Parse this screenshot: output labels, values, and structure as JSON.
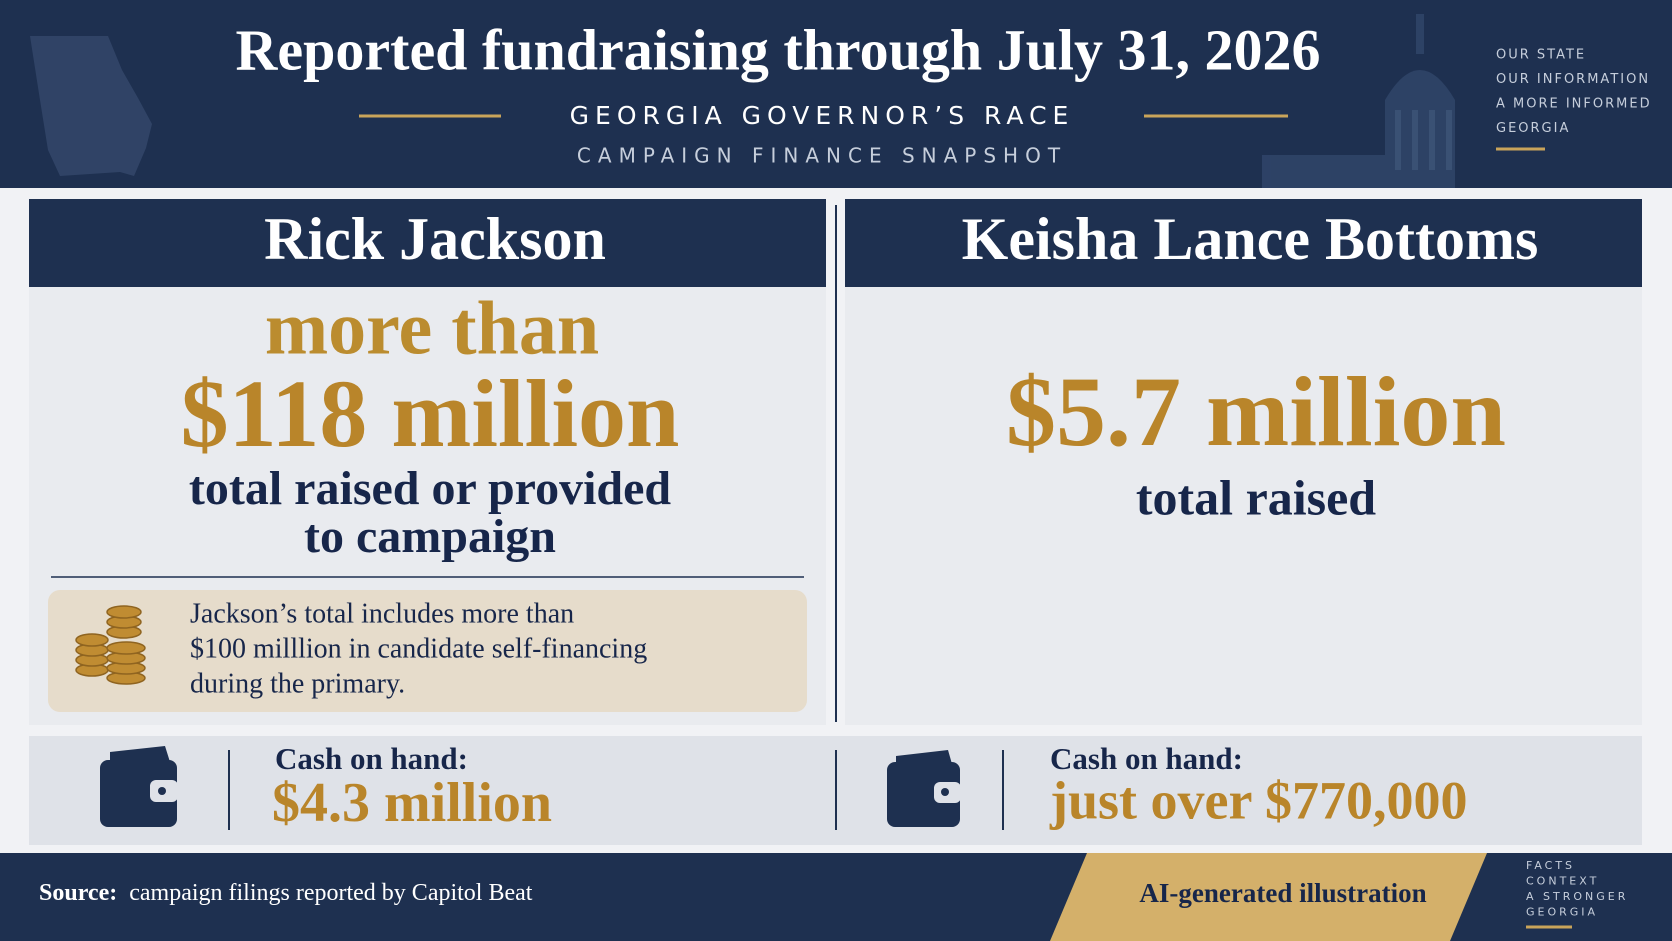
{
  "header": {
    "title": "Reported fundraising through July 31, 2026",
    "subtitle": "GEORGIA GOVERNOR’S RACE",
    "kicker": "CAMPAIGN FINANCE SNAPSHOT",
    "tagline": [
      "OUR STATE",
      "OUR INFORMATION",
      "A MORE INFORMED",
      "GEORGIA"
    ]
  },
  "candidates": [
    {
      "name": "Rick Jackson",
      "qualifier": "more than",
      "amount": "$118 million",
      "description": [
        "total raised or provided",
        "to campaign"
      ],
      "note": [
        "Jackson’s total includes more than",
        "$100 milllion in candidate self-financing",
        "during the primary."
      ],
      "cash_label": "Cash on hand:",
      "cash": "$4.3 million"
    },
    {
      "name": "Keisha Lance Bottoms",
      "amount": "$5.7 million",
      "description": [
        "total raised"
      ],
      "cash_label": "Cash on hand:",
      "cash": "just over $770,000"
    }
  ],
  "footer": {
    "source_label": "Source:",
    "source": "campaign filings reported by Capitol Beat",
    "badge": "AI-generated illustration",
    "tagline": [
      "FACTS",
      "CONTEXT",
      "A STRONGER",
      "GEORGIA"
    ]
  }
}
